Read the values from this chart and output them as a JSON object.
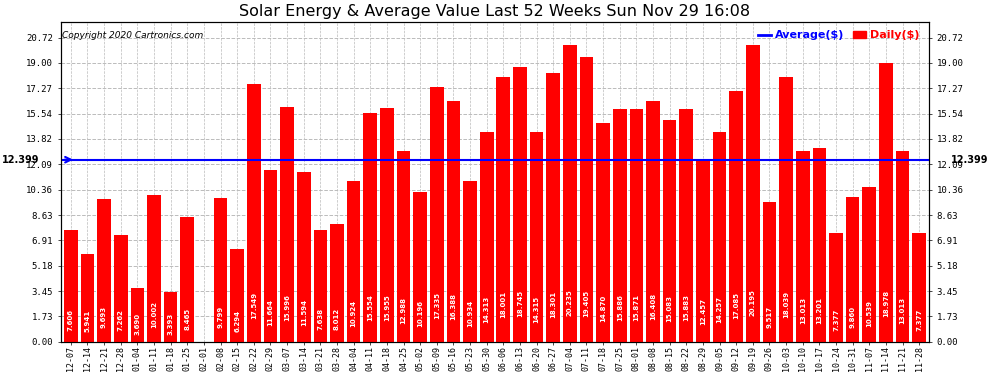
{
  "title": "Solar Energy & Average Value Last 52 Weeks Sun Nov 29 16:08",
  "copyright": "Copyright 2020 Cartronics.com",
  "legend_avg": "Average($)",
  "legend_daily": "Daily($)",
  "average_value": 12.399,
  "categories": [
    "12-07",
    "12-14",
    "12-21",
    "12-28",
    "01-04",
    "01-11",
    "01-18",
    "01-25",
    "02-01",
    "02-08",
    "02-15",
    "02-22",
    "02-29",
    "03-07",
    "03-14",
    "03-21",
    "03-28",
    "04-04",
    "04-11",
    "04-18",
    "04-25",
    "05-02",
    "05-09",
    "05-16",
    "05-23",
    "05-30",
    "06-06",
    "06-13",
    "06-20",
    "06-27",
    "07-04",
    "07-11",
    "07-18",
    "07-25",
    "08-01",
    "08-08",
    "08-15",
    "08-22",
    "08-29",
    "09-05",
    "09-12",
    "09-19",
    "09-26",
    "10-03",
    "10-10",
    "10-17",
    "10-24",
    "10-31",
    "11-07",
    "11-14",
    "11-21",
    "11-28"
  ],
  "values": [
    7.606,
    5.941,
    9.693,
    7.262,
    3.69,
    10.002,
    3.393,
    8.465,
    0.008,
    9.799,
    6.294,
    17.549,
    11.664,
    15.996,
    11.594,
    7.638,
    8.012,
    10.924,
    15.554,
    15.955,
    12.988,
    10.196,
    17.335,
    16.388,
    10.934,
    14.313,
    18.001,
    18.745,
    14.315,
    18.301,
    20.235,
    19.405,
    14.87,
    15.886,
    15.871,
    16.408,
    15.083,
    15.883,
    12.457,
    14.257,
    17.085,
    20.195,
    9.517,
    18.039,
    13.013,
    13.201,
    7.377,
    9.86,
    10.539,
    18.978,
    13.013,
    7.377
  ],
  "bar_color": "#ff0000",
  "avg_line_color": "#0000ff",
  "background_color": "#ffffff",
  "plot_bg_color": "#ffffff",
  "grid_color": "#bbbbbb",
  "yticks": [
    0.0,
    1.73,
    3.45,
    5.18,
    6.91,
    8.63,
    10.36,
    12.09,
    13.82,
    15.54,
    17.27,
    19.0,
    20.72
  ],
  "ylim": [
    0,
    21.8
  ],
  "value_fontsize": 5.0,
  "xlabel_fontsize": 6.0,
  "title_fontsize": 11.5
}
